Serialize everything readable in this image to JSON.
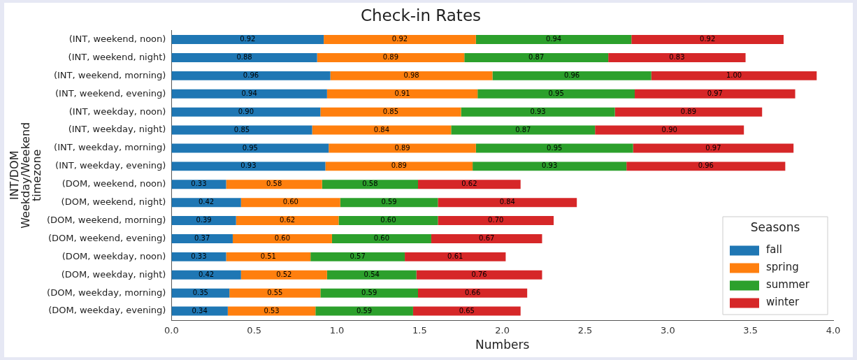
{
  "chart_data": {
    "type": "bar",
    "orientation": "horizontal",
    "stacked": true,
    "title": "Check-in Rates",
    "xlabel": "Numbers",
    "ylabel": "INT/DOM\nWeekday/Weekend\ntimezone",
    "legend_title": "Seasons",
    "legend": "bottom right",
    "grid": false,
    "categories": [
      "(INT, weekend, noon)",
      "(INT, weekend, night)",
      "(INT, weekend, morning)",
      "(INT, weekend, evening)",
      "(INT, weekday, noon)",
      "(INT, weekday, night)",
      "(INT, weekday, morning)",
      "(INT, weekday, evening)",
      "(DOM, weekend, noon)",
      "(DOM, weekend, night)",
      "(DOM, weekend, morning)",
      "(DOM, weekend, evening)",
      "(DOM, weekday, noon)",
      "(DOM, weekday, night)",
      "(DOM, weekday, morning)",
      "(DOM, weekday, evening)"
    ],
    "xlim": [
      0,
      4
    ],
    "xticks": [
      {
        "value": 0,
        "label": "0.0"
      },
      {
        "value": 0.5,
        "label": "0.5"
      },
      {
        "value": 1,
        "label": "1.0"
      },
      {
        "value": 1.5,
        "label": "1.5"
      },
      {
        "value": 2,
        "label": "2.0"
      },
      {
        "value": 2.5,
        "label": "2.5"
      },
      {
        "value": 3,
        "label": "3.0"
      },
      {
        "value": 3.5,
        "label": "3.5"
      },
      {
        "value": 4,
        "label": "4.0"
      }
    ],
    "series": [
      {
        "name": "fall",
        "color": "#1f77b4",
        "values": [
          0.92,
          0.88,
          0.96,
          0.94,
          0.9,
          0.85,
          0.95,
          0.93,
          0.33,
          0.42,
          0.39,
          0.37,
          0.33,
          0.42,
          0.35,
          0.34
        ],
        "value_labels": [
          "0.92",
          "0.88",
          "0.96",
          "0.94",
          "0.90",
          "0.85",
          "0.95",
          "0.93",
          "0.33",
          "0.42",
          "0.39",
          "0.37",
          "0.33",
          "0.42",
          "0.35",
          "0.34"
        ]
      },
      {
        "name": "spring",
        "color": "#ff7f0e",
        "values": [
          0.92,
          0.89,
          0.98,
          0.91,
          0.85,
          0.84,
          0.89,
          0.89,
          0.58,
          0.6,
          0.62,
          0.6,
          0.51,
          0.52,
          0.55,
          0.53
        ],
        "value_labels": [
          "0.92",
          "0.89",
          "0.98",
          "0.91",
          "0.85",
          "0.84",
          "0.89",
          "0.89",
          "0.58",
          "0.60",
          "0.62",
          "0.60",
          "0.51",
          "0.52",
          "0.55",
          "0.53"
        ]
      },
      {
        "name": "summer",
        "color": "#2ca02c",
        "values": [
          0.94,
          0.87,
          0.96,
          0.95,
          0.93,
          0.87,
          0.95,
          0.93,
          0.58,
          0.59,
          0.6,
          0.6,
          0.57,
          0.54,
          0.59,
          0.59
        ],
        "value_labels": [
          "0.94",
          "0.87",
          "0.96",
          "0.95",
          "0.93",
          "0.87",
          "0.95",
          "0.93",
          "0.58",
          "0.59",
          "0.60",
          "0.60",
          "0.57",
          "0.54",
          "0.59",
          "0.59"
        ]
      },
      {
        "name": "winter",
        "color": "#d62728",
        "values": [
          0.92,
          0.83,
          1.0,
          0.97,
          0.89,
          0.9,
          0.97,
          0.96,
          0.62,
          0.84,
          0.7,
          0.67,
          0.61,
          0.76,
          0.66,
          0.65
        ],
        "value_labels": [
          "0.92",
          "0.83",
          "1.00",
          "0.97",
          "0.89",
          "0.90",
          "0.97",
          "0.96",
          "0.62",
          "0.84",
          "0.70",
          "0.67",
          "0.61",
          "0.76",
          "0.66",
          "0.65"
        ]
      }
    ]
  }
}
